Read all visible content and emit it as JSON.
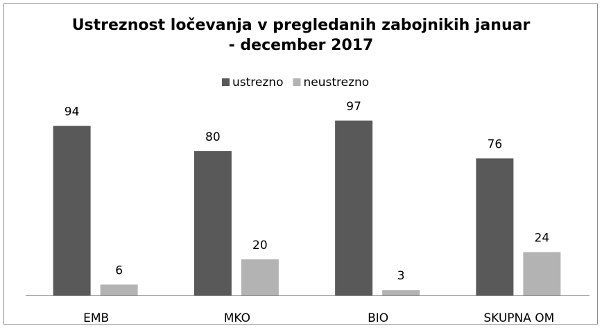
{
  "chart_data": {
    "type": "bar",
    "title": "Ustreznost ločevanja v pregledanih zabojnikih januar\n- december 2017",
    "categories": [
      "EMB",
      "MKO",
      "BIO",
      "SKUPNA OM"
    ],
    "series": [
      {
        "name": "ustrezno",
        "color": "#595959",
        "values": [
          94,
          80,
          97,
          76
        ]
      },
      {
        "name": "neustrezno",
        "color": "#b3b3b3",
        "values": [
          6,
          20,
          3,
          24
        ]
      }
    ],
    "legend": "top"
  }
}
